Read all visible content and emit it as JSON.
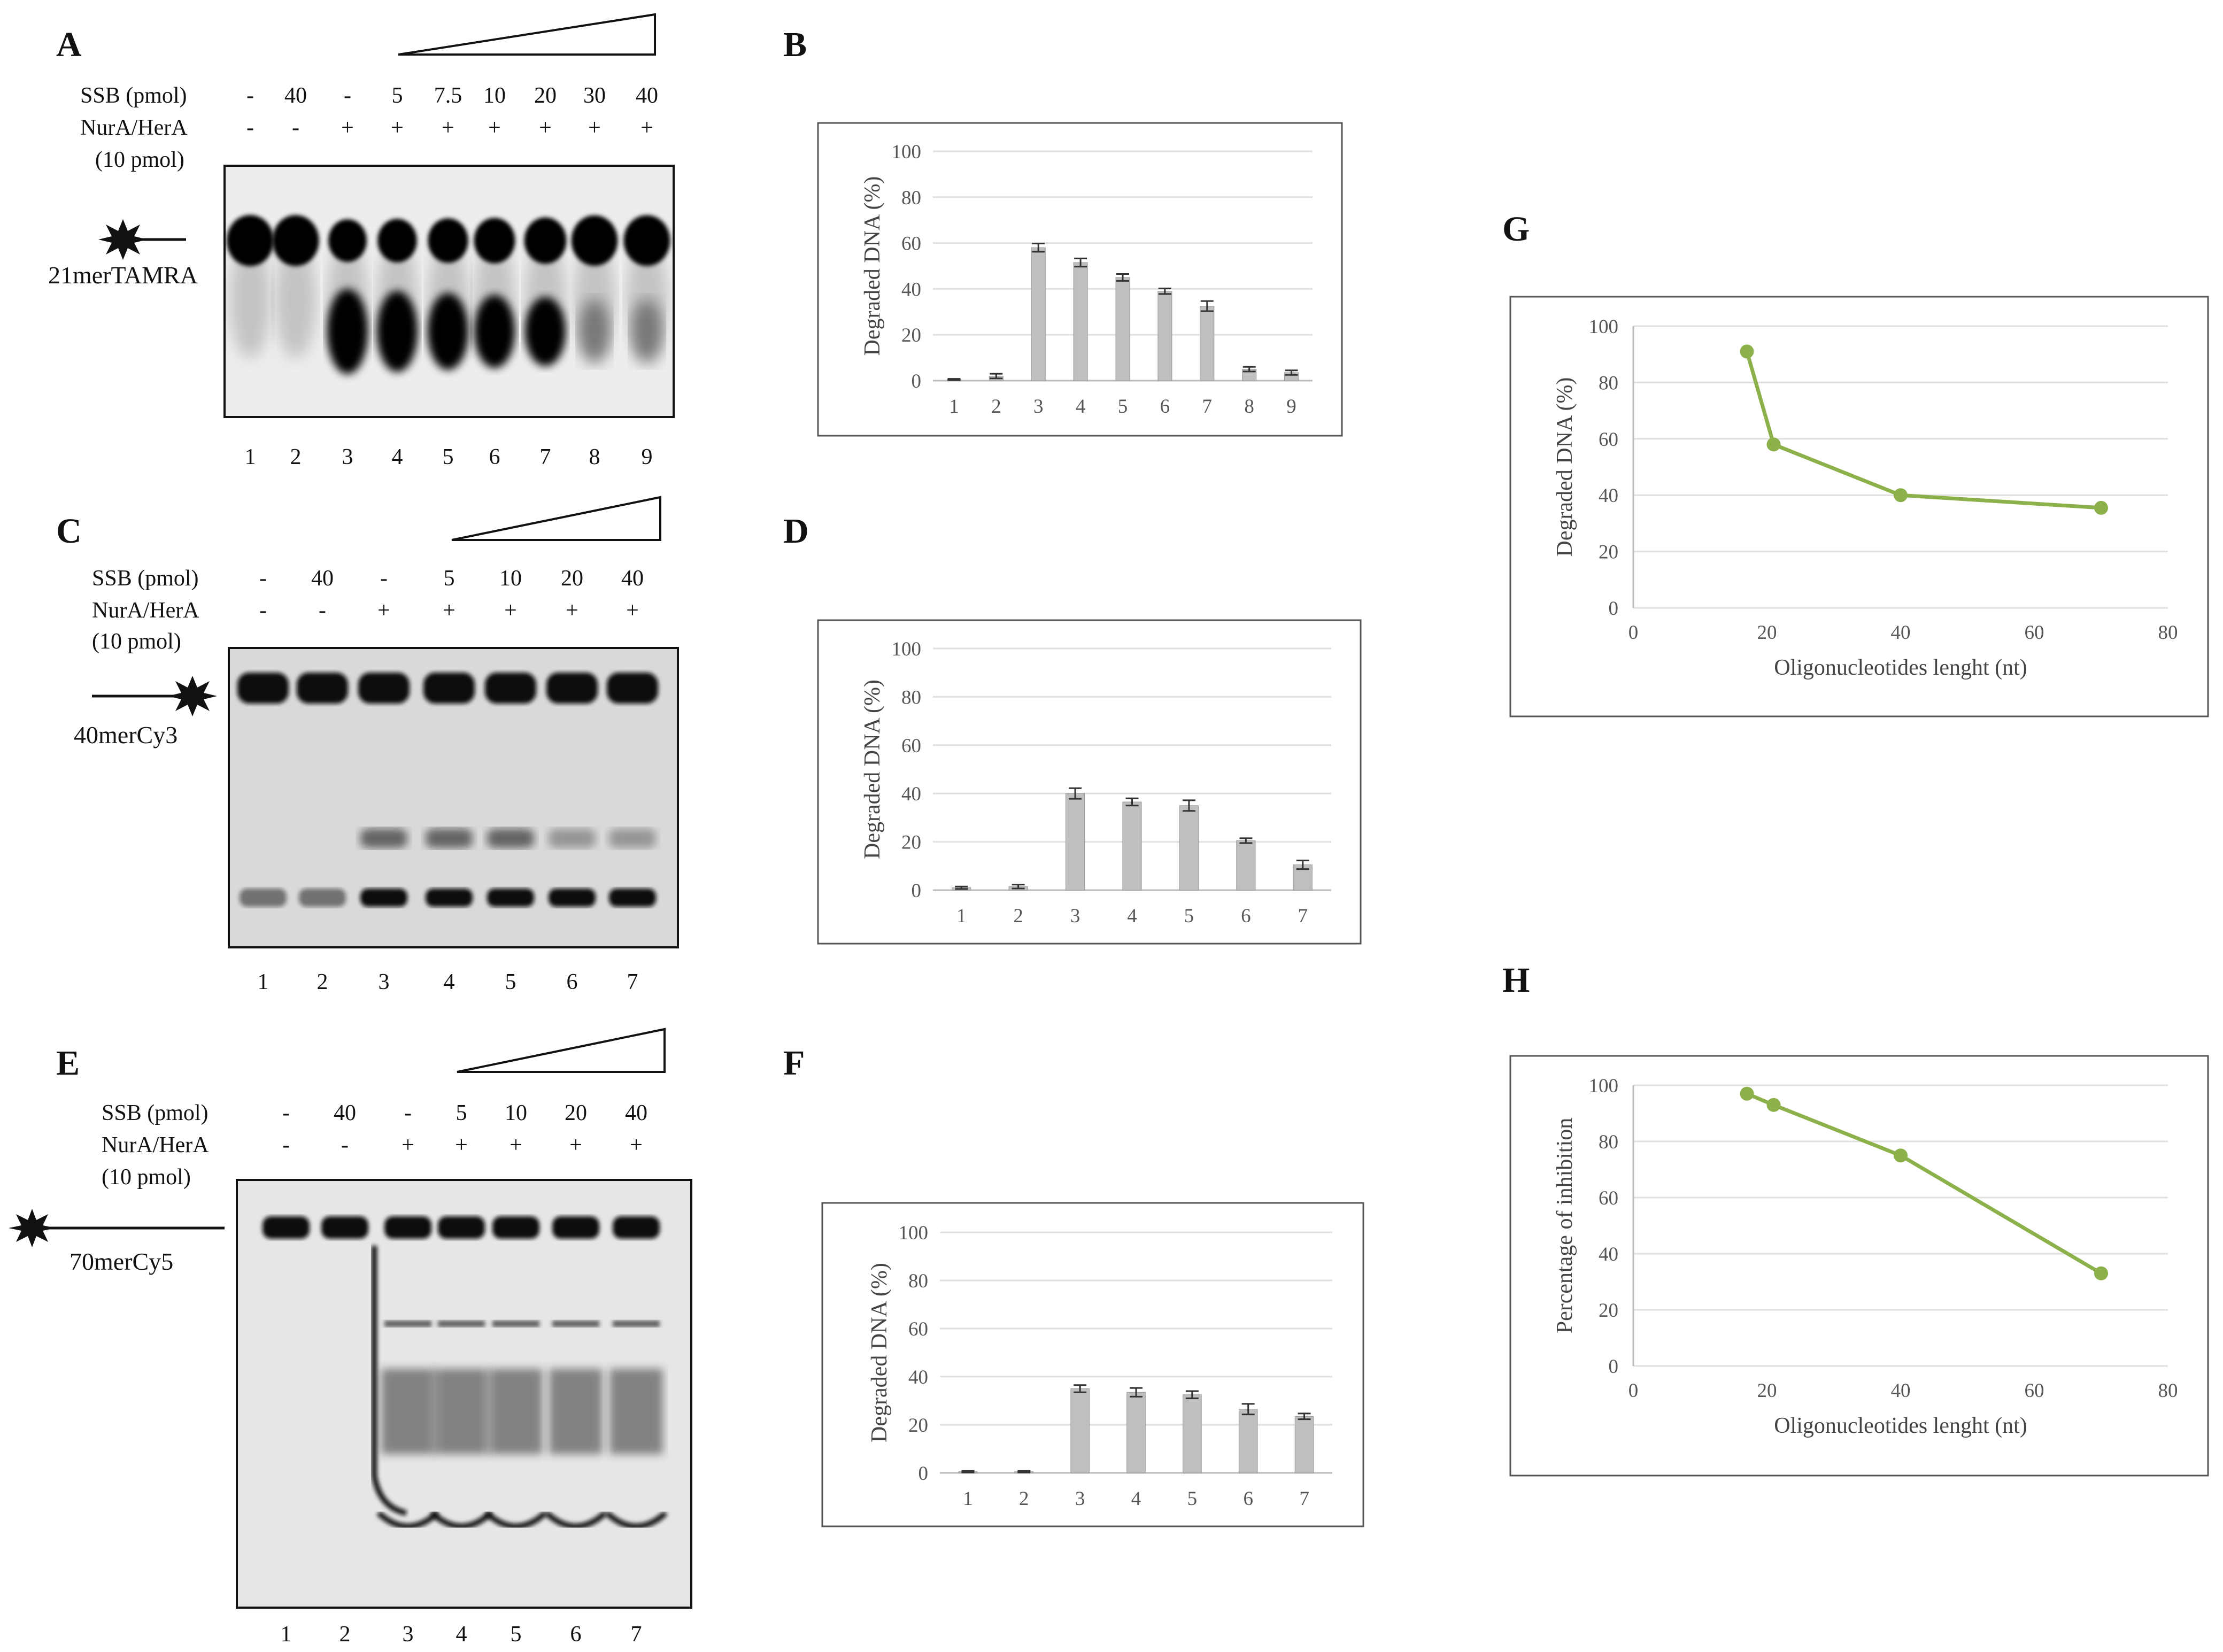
{
  "panels": {
    "A": {
      "letter": "A",
      "ssb_label": "SSB (pmol)",
      "ssb_values": [
        "-",
        "40",
        "-",
        "5",
        "7.5",
        "10",
        "20",
        "30",
        "40"
      ],
      "enzyme_label": "NurA/HerA",
      "enzyme_amount": "(10 pmol)",
      "enzyme_values": [
        "-",
        "-",
        "+",
        "+",
        "+",
        "+",
        "+",
        "+",
        "+"
      ],
      "probe": "21merTAMRA",
      "lanes": [
        "1",
        "2",
        "3",
        "4",
        "5",
        "6",
        "7",
        "8",
        "9"
      ]
    },
    "C": {
      "letter": "C",
      "ssb_label": "SSB (pmol)",
      "ssb_values": [
        "-",
        "40",
        "-",
        "5",
        "10",
        "20",
        "40"
      ],
      "enzyme_label": "NurA/HerA",
      "enzyme_amount": "(10 pmol)",
      "enzyme_values": [
        "-",
        "-",
        "+",
        "+",
        "+",
        "+",
        "+"
      ],
      "probe": "40merCy3",
      "lanes": [
        "1",
        "2",
        "3",
        "4",
        "5",
        "6",
        "7"
      ]
    },
    "E": {
      "letter": "E",
      "ssb_label": "SSB (pmol)",
      "ssb_values": [
        "-",
        "40",
        "-",
        "5",
        "10",
        "20",
        "40"
      ],
      "enzyme_label": "NurA/HerA",
      "enzyme_amount": "(10 pmol)",
      "enzyme_values": [
        "-",
        "-",
        "+",
        "+",
        "+",
        "+",
        "+"
      ],
      "probe": "70merCy5",
      "lanes": [
        "1",
        "2",
        "3",
        "4",
        "5",
        "6",
        "7"
      ]
    }
  },
  "chart_data": [
    {
      "id": "B",
      "letter": "B",
      "type": "bar",
      "categories": [
        "1",
        "2",
        "3",
        "4",
        "5",
        "6",
        "7",
        "8",
        "9"
      ],
      "values": [
        0.5,
        2,
        58,
        51.5,
        45,
        39,
        32.5,
        5,
        3.5
      ],
      "errors": [
        0.3,
        1,
        1.8,
        1.8,
        1.5,
        1.2,
        2.2,
        1,
        1
      ],
      "ylabel": "Degraded DNA (%)",
      "ylim": [
        0,
        100
      ],
      "yticks": [
        "0",
        "20",
        "40",
        "60",
        "80",
        "100"
      ],
      "bar_color": "#bfbfbf"
    },
    {
      "id": "D",
      "letter": "D",
      "type": "bar",
      "categories": [
        "1",
        "2",
        "3",
        "4",
        "5",
        "6",
        "7"
      ],
      "values": [
        1,
        1.5,
        40,
        36.5,
        35,
        20.5,
        10.5
      ],
      "errors": [
        0.5,
        0.8,
        2.2,
        1.5,
        2.2,
        1,
        1.8
      ],
      "ylabel": "Degraded DNA (%)",
      "ylim": [
        0,
        100
      ],
      "yticks": [
        "0",
        "20",
        "40",
        "60",
        "80",
        "100"
      ],
      "bar_color": "#bfbfbf"
    },
    {
      "id": "F",
      "letter": "F",
      "type": "bar",
      "categories": [
        "1",
        "2",
        "3",
        "4",
        "5",
        "6",
        "7"
      ],
      "values": [
        0.5,
        0.5,
        35,
        33.5,
        32.5,
        26.5,
        23.5
      ],
      "errors": [
        0.3,
        0.3,
        1.5,
        1.8,
        1.5,
        2.2,
        1.2
      ],
      "ylabel": "Degraded DNA (%)",
      "ylim": [
        0,
        100
      ],
      "yticks": [
        "0",
        "20",
        "40",
        "60",
        "80",
        "100"
      ],
      "bar_color": "#bfbfbf"
    },
    {
      "id": "G",
      "letter": "G",
      "type": "line",
      "x": [
        17,
        21,
        40,
        70
      ],
      "y": [
        91,
        58,
        40,
        35.5
      ],
      "xlabel": "Oligonucleotides lenght (nt)",
      "ylabel": "Degraded DNA (%)",
      "xlim": [
        0,
        80
      ],
      "ylim": [
        0,
        100
      ],
      "xticks": [
        "0",
        "20",
        "40",
        "60",
        "80"
      ],
      "yticks": [
        "0",
        "20",
        "40",
        "60",
        "80",
        "100"
      ],
      "color": "#8cb04a"
    },
    {
      "id": "H",
      "letter": "H",
      "type": "line",
      "x": [
        17,
        21,
        40,
        70
      ],
      "y": [
        97,
        93,
        75,
        33
      ],
      "xlabel": "Oligonucleotides lenght (nt)",
      "ylabel": "Percentage of inhibition",
      "xlim": [
        0,
        80
      ],
      "ylim": [
        0,
        100
      ],
      "xticks": [
        "0",
        "20",
        "40",
        "60",
        "80"
      ],
      "yticks": [
        "0",
        "20",
        "40",
        "60",
        "80",
        "100"
      ],
      "color": "#8cb04a"
    }
  ]
}
